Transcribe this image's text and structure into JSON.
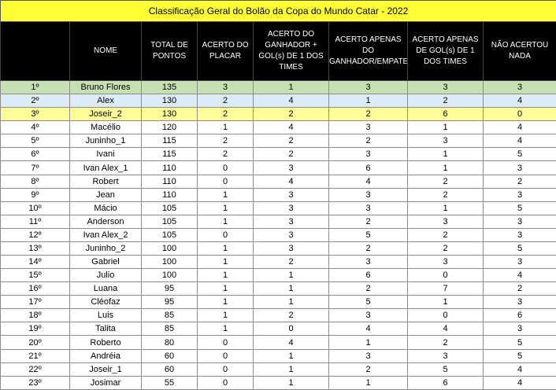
{
  "title": "Classificação Geral do Bolão da Copa do Mundo Catar - 2022",
  "columns": [
    "",
    "NOME",
    "TOTAL DE PONTOS",
    "ACERTO DO PLACAR",
    "ACERTO DO GANHADOR + GOL(s) DE 1 DOS TIMES",
    "ACERTO APENAS DO GANHADOR/EMPATE",
    "ACERTO APENAS DE GOL(s) DE 1 DOS TIMES",
    "NÃO ACERTOU NADA"
  ],
  "highlight_colors": {
    "first": "#c6e0b4",
    "second": "#ddebf7",
    "third": "#ffff99",
    "title": "#ffff33",
    "header": "#000000"
  },
  "rows": [
    [
      "1º",
      "Bruno Flores",
      "135",
      "3",
      "1",
      "3",
      "3",
      "3"
    ],
    [
      "2º",
      "Alex",
      "130",
      "2",
      "4",
      "1",
      "2",
      "4"
    ],
    [
      "3º",
      "Joseir_2",
      "130",
      "2",
      "2",
      "2",
      "6",
      "0"
    ],
    [
      "4º",
      "Macélio",
      "120",
      "1",
      "4",
      "3",
      "1",
      "4"
    ],
    [
      "5º",
      "Juninho_1",
      "115",
      "2",
      "2",
      "2",
      "3",
      "4"
    ],
    [
      "6º",
      "Ivani",
      "115",
      "2",
      "2",
      "3",
      "1",
      "5"
    ],
    [
      "7º",
      "Ivan Alex_1",
      "110",
      "0",
      "3",
      "6",
      "1",
      "3"
    ],
    [
      "8º",
      "Robert",
      "110",
      "0",
      "4",
      "4",
      "2",
      "2"
    ],
    [
      "9º",
      "Jean",
      "110",
      "1",
      "3",
      "3",
      "2",
      "3"
    ],
    [
      "10º",
      "Mácio",
      "105",
      "1",
      "3",
      "3",
      "1",
      "5"
    ],
    [
      "11º",
      "Anderson",
      "105",
      "1",
      "3",
      "2",
      "3",
      "3"
    ],
    [
      "12º",
      "Ivan Alex_2",
      "105",
      "0",
      "3",
      "5",
      "2",
      "3"
    ],
    [
      "13º",
      "Juninho_2",
      "100",
      "1",
      "3",
      "2",
      "2",
      "5"
    ],
    [
      "14º",
      "Gabriel",
      "100",
      "1",
      "2",
      "3",
      "3",
      "3"
    ],
    [
      "15º",
      "Julio",
      "100",
      "1",
      "1",
      "6",
      "0",
      "4"
    ],
    [
      "16º",
      "Luana",
      "95",
      "1",
      "1",
      "2",
      "7",
      "2"
    ],
    [
      "17º",
      "Cléofaz",
      "95",
      "1",
      "1",
      "5",
      "1",
      "3"
    ],
    [
      "18º",
      "Luis",
      "85",
      "1",
      "2",
      "3",
      "0",
      "6"
    ],
    [
      "19º",
      "Talita",
      "85",
      "1",
      "0",
      "4",
      "4",
      "3"
    ],
    [
      "20º",
      "Roberto",
      "80",
      "0",
      "4",
      "1",
      "2",
      "5"
    ],
    [
      "21º",
      "Andréia",
      "60",
      "0",
      "1",
      "3",
      "3",
      "5"
    ],
    [
      "22º",
      "Joseir_1",
      "60",
      "0",
      "1",
      "2",
      "5",
      "4"
    ],
    [
      "23º",
      "Josimar",
      "55",
      "0",
      "1",
      "1",
      "6",
      "4"
    ]
  ]
}
